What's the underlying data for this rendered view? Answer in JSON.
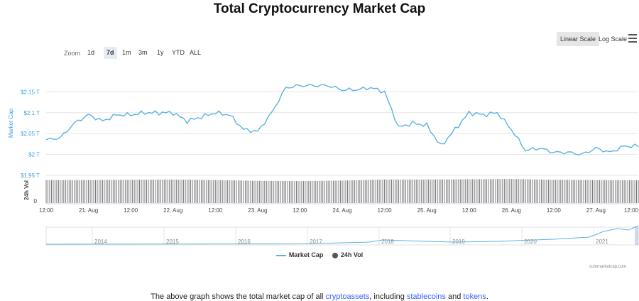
{
  "header": {
    "title": "Total Cryptocurrency Market Cap"
  },
  "controls": {
    "linear_scale": "Linear Scale",
    "log_scale": "Log Scale",
    "zoom_label": "Zoom",
    "zoom_options": [
      "1d",
      "7d",
      "1m",
      "3m",
      "1y",
      "YTD",
      "ALL"
    ],
    "zoom_active": "7d"
  },
  "legend": {
    "market_cap": "Market Cap",
    "volume": "24h Vol"
  },
  "credit": "coinmarketcap.com",
  "footer": {
    "text_before": "The above graph shows the total market cap of all ",
    "link1": "cryptoassets",
    "text_middle": ", including ",
    "link2": "stablecoins",
    "text_and": " and ",
    "link3": "tokens",
    "text_after": "."
  },
  "colors": {
    "line": "#5bb2e1",
    "volume": "#555555",
    "accent": "#3aa0e0"
  },
  "chart_data": {
    "type": "line",
    "ylabel": "Market Cap",
    "ylabel_volume": "24h Vol",
    "y_ticks": [
      "$1.95 T",
      "$2 T",
      "$2.05 T",
      "$2.1 T",
      "$2.15 T"
    ],
    "y_tick_values": [
      1.95,
      2.0,
      2.05,
      2.1,
      2.15
    ],
    "ylim": [
      1.95,
      2.2
    ],
    "volume_tick": "0",
    "x_ticks": [
      "12:00",
      "21. Aug",
      "12:00",
      "22. Aug",
      "12:00",
      "23. Aug",
      "12:00",
      "24. Aug",
      "12:00",
      "25. Aug",
      "12:00",
      "26. Aug",
      "12:00",
      "27. Aug",
      "12:00"
    ],
    "x_tick_hours": [
      0,
      12,
      24,
      36,
      48,
      60,
      72,
      84,
      96,
      108,
      120,
      132,
      144,
      156,
      168
    ],
    "xlim_hours": [
      0,
      168
    ],
    "series": [
      {
        "name": "Market Cap",
        "x_hours": [
          0,
          4,
          8,
          12,
          16,
          20,
          24,
          28,
          32,
          36,
          40,
          44,
          48,
          52,
          56,
          60,
          64,
          68,
          72,
          76,
          80,
          84,
          88,
          92,
          96,
          100,
          104,
          108,
          112,
          116,
          120,
          124,
          128,
          132,
          136,
          140,
          144,
          148,
          152,
          156,
          160,
          164,
          168
        ],
        "values": [
          2.035,
          2.04,
          2.075,
          2.095,
          2.08,
          2.095,
          2.095,
          2.1,
          2.1,
          2.1,
          2.08,
          2.09,
          2.1,
          2.095,
          2.06,
          2.055,
          2.1,
          2.16,
          2.165,
          2.165,
          2.165,
          2.155,
          2.155,
          2.16,
          2.15,
          2.065,
          2.075,
          2.07,
          2.02,
          2.06,
          2.1,
          2.095,
          2.1,
          2.06,
          2.01,
          2.015,
          2.005,
          2.005,
          2.0,
          2.015,
          2.005,
          2.02,
          2.02
        ]
      },
      {
        "name": "24h Vol",
        "x_hours": [
          0,
          12,
          24,
          36,
          48,
          60,
          72,
          84,
          96,
          108,
          120,
          132,
          144,
          156,
          168
        ],
        "values": [
          0.9,
          0.9,
          0.91,
          0.92,
          0.9,
          0.87,
          0.86,
          0.88,
          0.92,
          0.92,
          0.93,
          0.94,
          0.91,
          0.9,
          0.89
        ]
      }
    ],
    "navigator_years": [
      "2014",
      "2015",
      "2016",
      "2017",
      "2018",
      "2019",
      "2020",
      "2021"
    ]
  }
}
